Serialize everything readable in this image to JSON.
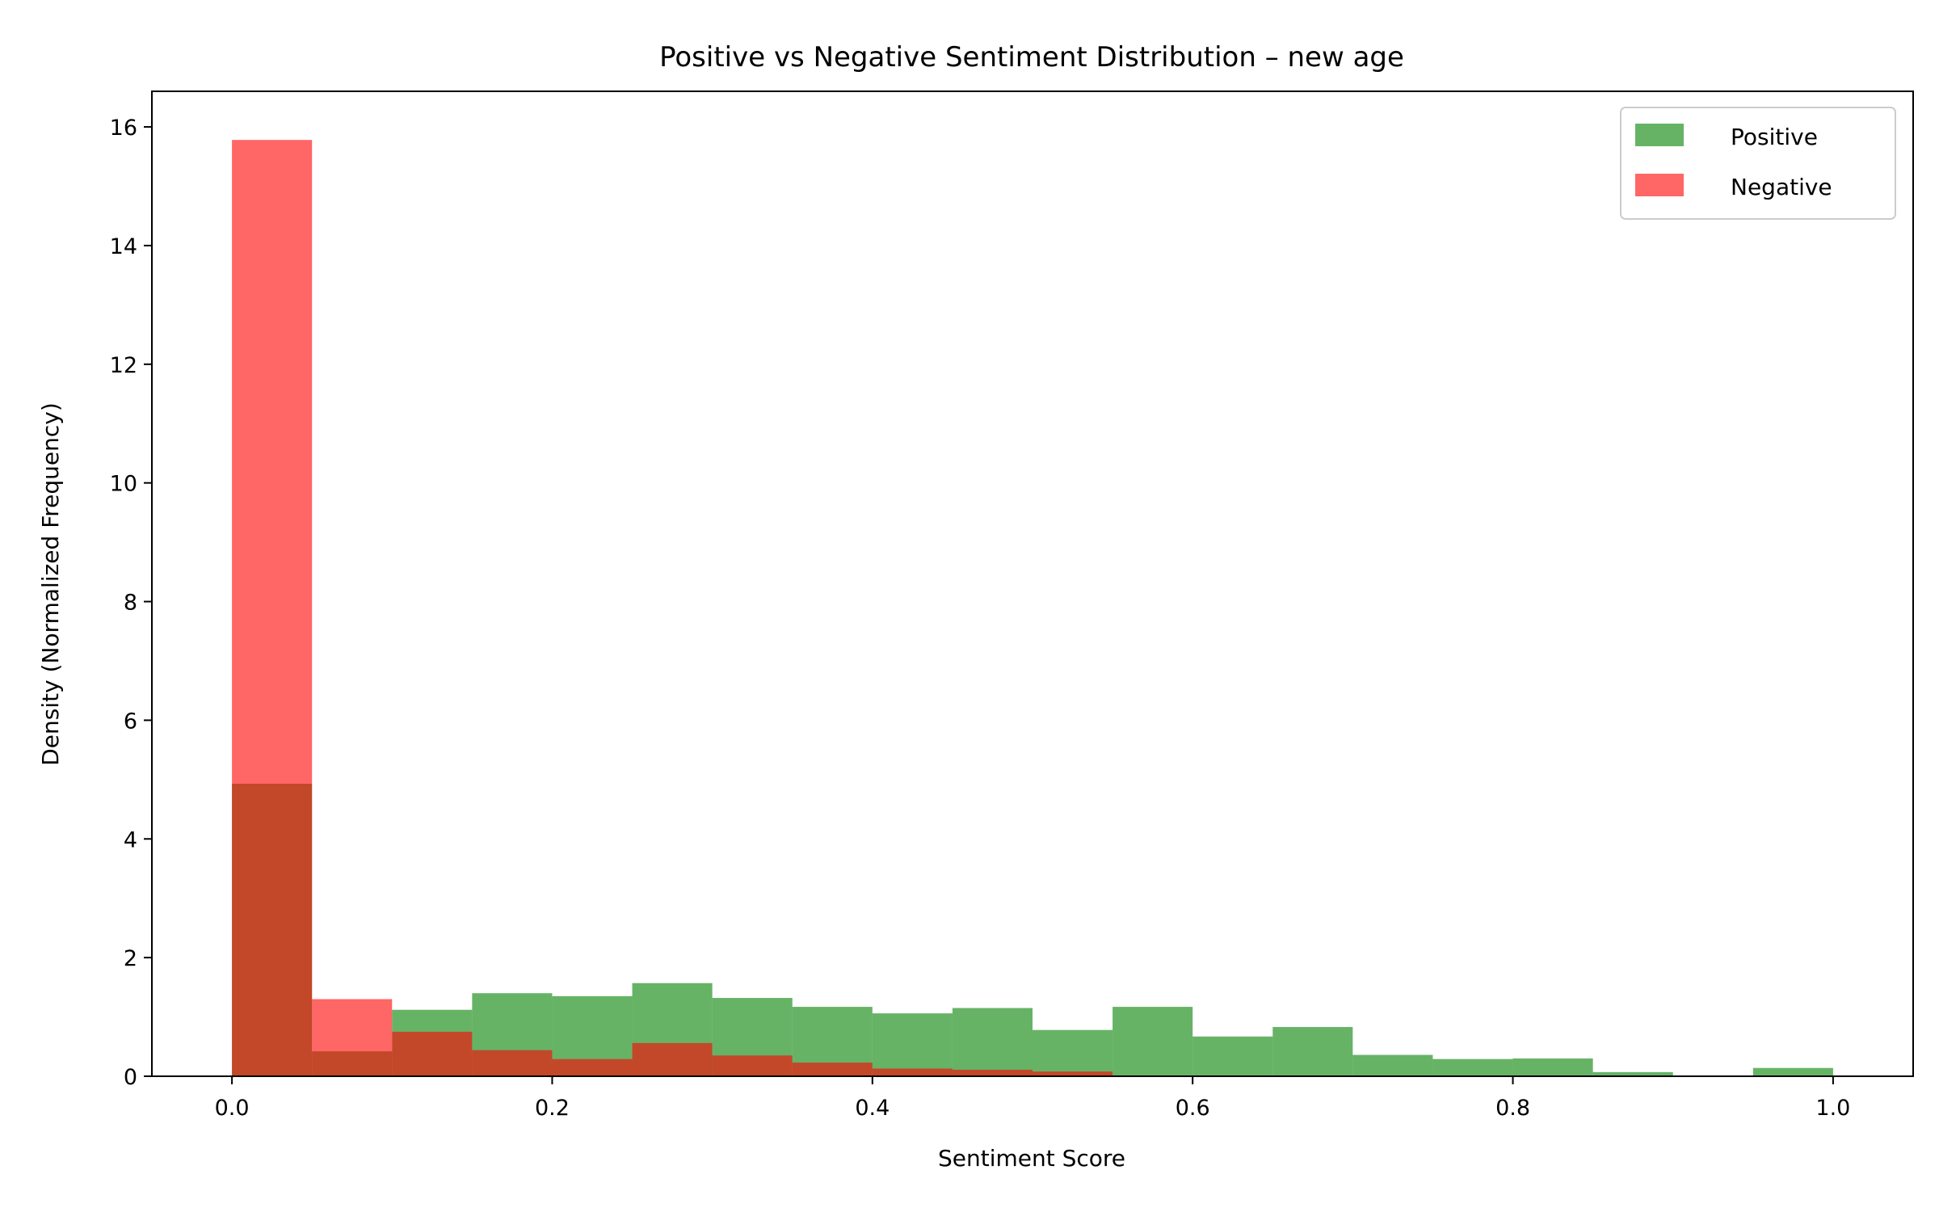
{
  "chart_data": {
    "type": "bar",
    "title": "Positive vs Negative Sentiment Distribution – new age",
    "xlabel": "Sentiment Score",
    "ylabel": "Density (Normalized Frequency)",
    "xlim": [
      -0.05,
      1.05
    ],
    "ylim": [
      0,
      16.6
    ],
    "xticks": [
      "0.0",
      "0.2",
      "0.4",
      "0.6",
      "0.8",
      "1.0"
    ],
    "yticks": [
      "0",
      "2",
      "4",
      "6",
      "8",
      "10",
      "12",
      "14",
      "16"
    ],
    "bin_edges": [
      0.0,
      0.05,
      0.1,
      0.15,
      0.2,
      0.25,
      0.3,
      0.35,
      0.4,
      0.45,
      0.5,
      0.55,
      0.6,
      0.65,
      0.7,
      0.75,
      0.8,
      0.85,
      0.9,
      0.95,
      1.0
    ],
    "legend_position": "top-right",
    "grid": false,
    "series": [
      {
        "name": "Positive",
        "color": "#008000",
        "alpha": 0.6,
        "values": [
          4.93,
          0.42,
          1.12,
          1.4,
          1.35,
          1.57,
          1.32,
          1.17,
          1.06,
          1.15,
          0.78,
          1.17,
          0.67,
          0.83,
          0.36,
          0.29,
          0.3,
          0.07,
          0.0,
          0.14
        ]
      },
      {
        "name": "Negative",
        "color": "#ff0000",
        "alpha": 0.6,
        "values": [
          15.78,
          1.3,
          0.75,
          0.44,
          0.29,
          0.56,
          0.35,
          0.23,
          0.13,
          0.11,
          0.08,
          0.0,
          0.0,
          0.0,
          0.0,
          0.0,
          0.0,
          0.0,
          0.0,
          0.0
        ]
      }
    ]
  }
}
